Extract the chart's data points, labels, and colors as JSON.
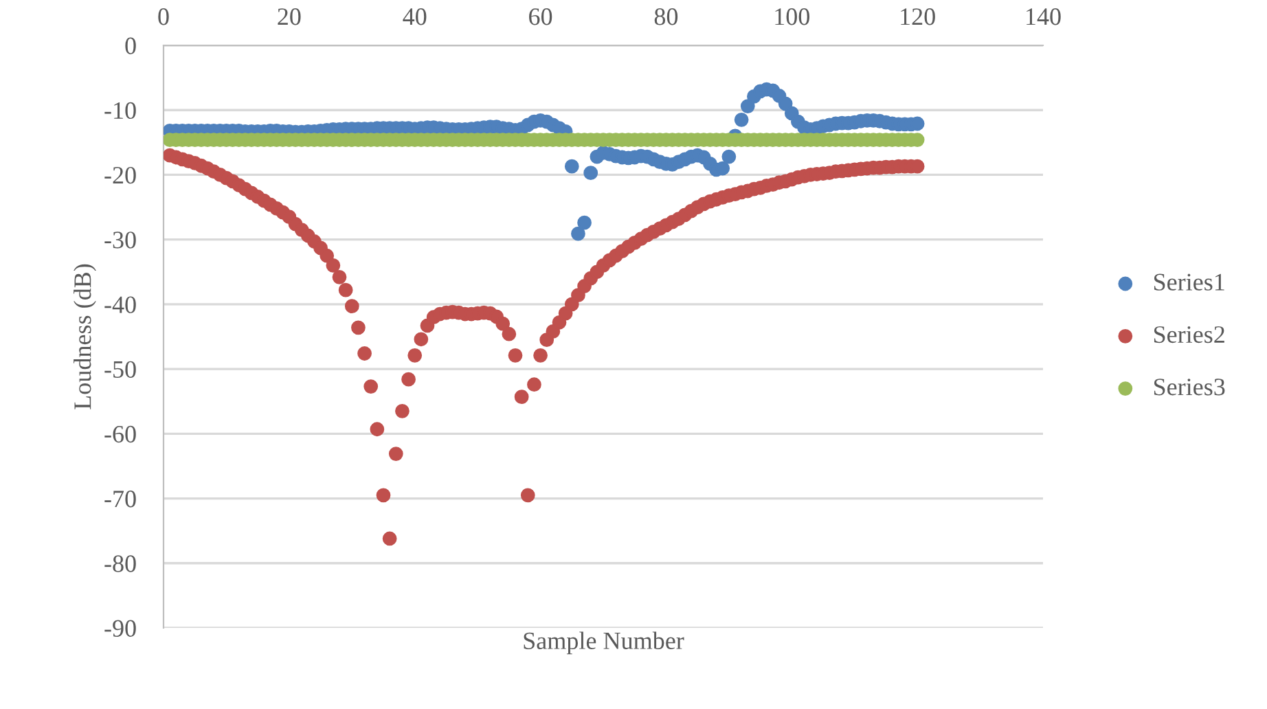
{
  "chart_data": {
    "type": "scatter",
    "xlabel": "Sample Number",
    "ylabel": "Loudness (dB)",
    "x": [
      1,
      2,
      3,
      4,
      5,
      6,
      7,
      8,
      9,
      10,
      11,
      12,
      13,
      14,
      15,
      16,
      17,
      18,
      19,
      20,
      21,
      22,
      23,
      24,
      25,
      26,
      27,
      28,
      29,
      30,
      31,
      32,
      33,
      34,
      35,
      36,
      37,
      38,
      39,
      40,
      41,
      42,
      43,
      44,
      45,
      46,
      47,
      48,
      49,
      50,
      51,
      52,
      53,
      54,
      55,
      56,
      57,
      58,
      59,
      60,
      61,
      62,
      63,
      64,
      65,
      66,
      67,
      68,
      69,
      70,
      71,
      72,
      73,
      74,
      75,
      76,
      77,
      78,
      79,
      80,
      81,
      82,
      83,
      84,
      85,
      86,
      87,
      88,
      89,
      90,
      91,
      92,
      93,
      94,
      95,
      96,
      97,
      98,
      99,
      100,
      101,
      102,
      103,
      104,
      105,
      106,
      107,
      108,
      109,
      110,
      111,
      112,
      113,
      114,
      115,
      116,
      117,
      118,
      119,
      120
    ],
    "series": [
      {
        "name": "Series1",
        "color": "#4f81bd",
        "values": [
          -13.2,
          -13.2,
          -13.2,
          -13.2,
          -13.2,
          -13.2,
          -13.2,
          -13.2,
          -13.2,
          -13.2,
          -13.2,
          -13.2,
          -13.3,
          -13.3,
          -13.3,
          -13.3,
          -13.2,
          -13.2,
          -13.3,
          -13.3,
          -13.4,
          -13.4,
          -13.3,
          -13.3,
          -13.2,
          -13.1,
          -13,
          -13,
          -12.9,
          -12.9,
          -12.9,
          -12.9,
          -12.9,
          -12.8,
          -12.8,
          -12.8,
          -12.8,
          -12.8,
          -12.8,
          -12.9,
          -12.8,
          -12.7,
          -12.7,
          -12.8,
          -12.9,
          -13,
          -13,
          -13,
          -12.9,
          -12.8,
          -12.7,
          -12.6,
          -12.6,
          -12.8,
          -12.9,
          -13.1,
          -12.9,
          -12.3,
          -11.8,
          -11.6,
          -11.8,
          -12.3,
          -12.8,
          -13.3,
          -18.7,
          -29.1,
          -27.4,
          -19.7,
          -17.2,
          -16.6,
          -16.8,
          -17.1,
          -17.3,
          -17.4,
          -17.3,
          -17.1,
          -17.2,
          -17.6,
          -18,
          -18.3,
          -18.4,
          -18,
          -17.6,
          -17.2,
          -17,
          -17.3,
          -18.3,
          -19.2,
          -19,
          -17.2,
          -14,
          -11.5,
          -9.4,
          -7.9,
          -7.1,
          -6.8,
          -7,
          -7.8,
          -9,
          -10.5,
          -11.8,
          -12.7,
          -13,
          -12.8,
          -12.5,
          -12.3,
          -12.1,
          -12,
          -12,
          -11.9,
          -11.7,
          -11.6,
          -11.6,
          -11.7,
          -11.9,
          -12.1,
          -12.2,
          -12.2,
          -12.2,
          -12.1
        ]
      },
      {
        "name": "Series2",
        "color": "#c0504d",
        "values": [
          -17,
          -17.3,
          -17.6,
          -17.9,
          -18.2,
          -18.6,
          -19,
          -19.5,
          -20,
          -20.5,
          -21,
          -21.6,
          -22.2,
          -22.8,
          -23.4,
          -24,
          -24.6,
          -25.2,
          -25.8,
          -26.5,
          -27.6,
          -28.5,
          -29.4,
          -30.3,
          -31.3,
          -32.5,
          -34,
          -35.8,
          -37.8,
          -40.3,
          -43.6,
          -47.6,
          -52.7,
          -59.3,
          -69.5,
          -76.2,
          -63.1,
          -56.5,
          -51.6,
          -47.9,
          -45.4,
          -43.3,
          -42,
          -41.5,
          -41.3,
          -41.2,
          -41.3,
          -41.5,
          -41.5,
          -41.4,
          -41.3,
          -41.4,
          -41.9,
          -43,
          -44.6,
          -47.9,
          -54.3,
          -69.5,
          -52.4,
          -47.9,
          -45.5,
          -44.2,
          -42.8,
          -41.4,
          -40,
          -38.6,
          -37.2,
          -36,
          -35,
          -34,
          -33.2,
          -32.5,
          -31.8,
          -31.1,
          -30.5,
          -29.9,
          -29.3,
          -28.8,
          -28.3,
          -27.8,
          -27.3,
          -26.8,
          -26.2,
          -25.6,
          -25,
          -24.5,
          -24.1,
          -23.8,
          -23.5,
          -23.2,
          -23,
          -22.7,
          -22.5,
          -22.2,
          -22,
          -21.7,
          -21.5,
          -21.2,
          -21,
          -20.7,
          -20.4,
          -20.2,
          -20,
          -19.9,
          -19.8,
          -19.7,
          -19.5,
          -19.4,
          -19.3,
          -19.2,
          -19.1,
          -19,
          -18.9,
          -18.9,
          -18.8,
          -18.8,
          -18.7,
          -18.7,
          -18.7,
          -18.7
        ]
      },
      {
        "name": "Series3",
        "color": "#9bbb59",
        "values": [
          -14.6,
          -14.6,
          -14.6,
          -14.6,
          -14.6,
          -14.6,
          -14.6,
          -14.6,
          -14.6,
          -14.6,
          -14.6,
          -14.6,
          -14.6,
          -14.6,
          -14.6,
          -14.6,
          -14.6,
          -14.6,
          -14.6,
          -14.6,
          -14.6,
          -14.6,
          -14.6,
          -14.6,
          -14.6,
          -14.6,
          -14.6,
          -14.6,
          -14.6,
          -14.6,
          -14.6,
          -14.6,
          -14.6,
          -14.6,
          -14.6,
          -14.6,
          -14.6,
          -14.6,
          -14.6,
          -14.6,
          -14.6,
          -14.6,
          -14.6,
          -14.6,
          -14.6,
          -14.6,
          -14.6,
          -14.6,
          -14.6,
          -14.6,
          -14.6,
          -14.6,
          -14.6,
          -14.6,
          -14.6,
          -14.6,
          -14.6,
          -14.6,
          -14.6,
          -14.6,
          -14.6,
          -14.6,
          -14.6,
          -14.6,
          -14.6,
          -14.6,
          -14.6,
          -14.6,
          -14.6,
          -14.6,
          -14.6,
          -14.6,
          -14.6,
          -14.6,
          -14.6,
          -14.6,
          -14.6,
          -14.6,
          -14.6,
          -14.6,
          -14.6,
          -14.6,
          -14.6,
          -14.6,
          -14.6,
          -14.6,
          -14.6,
          -14.6,
          -14.6,
          -14.6,
          -14.6,
          -14.6,
          -14.6,
          -14.6,
          -14.6,
          -14.6,
          -14.6,
          -14.6,
          -14.6,
          -14.6,
          -14.6,
          -14.6,
          -14.6,
          -14.6,
          -14.6,
          -14.6,
          -14.6,
          -14.6,
          -14.6,
          -14.6,
          -14.6,
          -14.6,
          -14.6,
          -14.6,
          -14.6,
          -14.6,
          -14.6,
          -14.6,
          -14.6,
          -14.6
        ]
      }
    ],
    "xlim": [
      0,
      140
    ],
    "xticks": [
      0,
      20,
      40,
      60,
      80,
      100,
      120,
      140
    ],
    "ylim": [
      -90,
      0
    ],
    "yticks": [
      -90,
      -80,
      -70,
      -60,
      -50,
      -40,
      -30,
      -20,
      -10,
      0
    ],
    "grid": "y",
    "legend": "right",
    "marker": "circle"
  }
}
